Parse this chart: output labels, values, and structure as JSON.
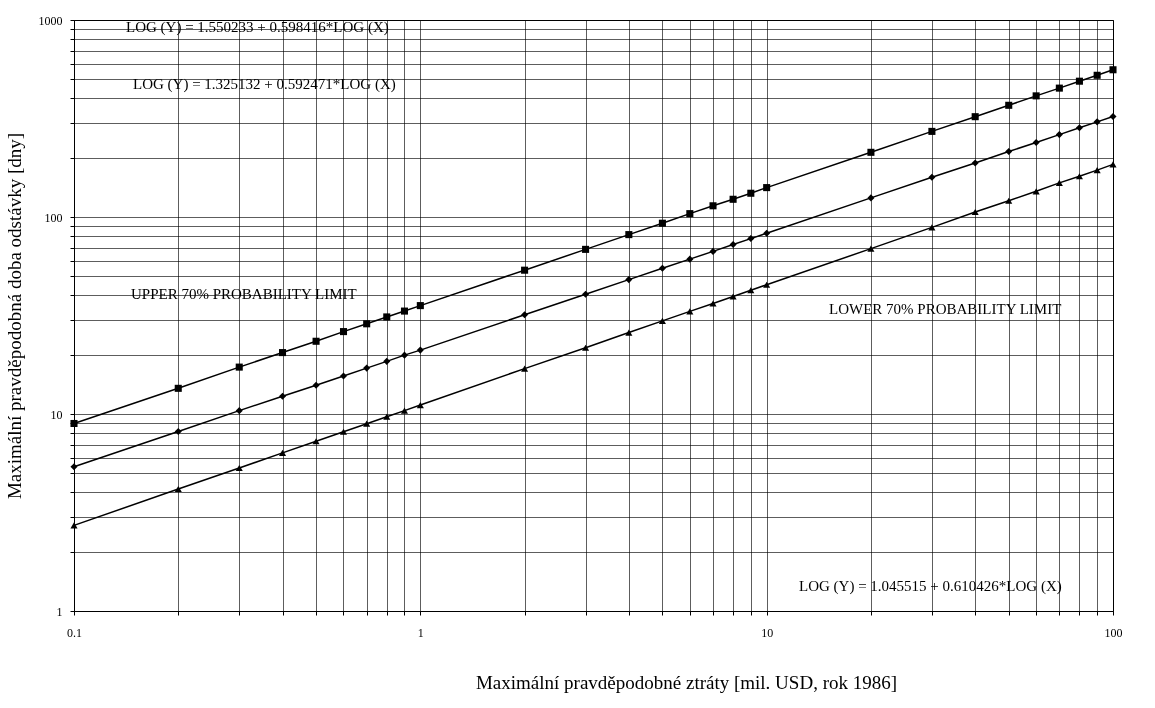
{
  "chart_data": {
    "type": "line",
    "xlabel": "Maximální pravděpodobné ztráty [mil. USD, rok 1986]",
    "ylabel": "Maximální pravděpodobná doba odstávky [dny]",
    "log": "xy",
    "grid": true,
    "line_style": "solid",
    "x": [
      0.1,
      0.2,
      0.3,
      0.4,
      0.5,
      0.6,
      0.7,
      0.8,
      0.9,
      1,
      2,
      3,
      4,
      5,
      6,
      7,
      8,
      9,
      10,
      20,
      30,
      40,
      50,
      60,
      70,
      80,
      90,
      100
    ],
    "series": [
      {
        "color": "#000000",
        "marker": "square",
        "values": [
          8.95,
          13.5,
          17.3,
          20.5,
          23.4,
          26.2,
          28.7,
          31.1,
          33.3,
          35.5,
          53.7,
          68.5,
          81.4,
          93,
          104,
          114,
          123,
          132,
          141,
          213,
          272,
          323,
          369,
          412,
          451,
          489,
          524,
          559
        ]
      },
      {
        "color": "#000000",
        "marker": "diamond",
        "values": [
          5.4,
          8.15,
          10.4,
          12.3,
          14,
          15.6,
          17.1,
          18.5,
          19.9,
          21.1,
          31.9,
          40.5,
          48.1,
          54.9,
          61.1,
          66.9,
          72.5,
          77.7,
          82.7,
          125,
          159,
          188,
          215,
          239,
          262,
          284,
          304,
          324
        ]
      },
      {
        "color": "#000000",
        "marker": "triangle",
        "values": [
          2.72,
          4.16,
          5.32,
          6.35,
          7.27,
          8.13,
          8.93,
          9.69,
          10.4,
          11.1,
          17,
          21.7,
          25.9,
          29.7,
          33.2,
          36.4,
          39.5,
          42.5,
          45.3,
          69.1,
          88.6,
          106,
          121,
          135,
          149,
          161,
          173,
          185
        ]
      }
    ],
    "xlim": [
      0.1,
      100
    ],
    "ylim": [
      1,
      1000
    ],
    "xticks": [
      0.1,
      {
        "value": 0.2,
        "label": null
      },
      {
        "value": 0.3,
        "label": null
      },
      {
        "value": 0.4,
        "label": null
      },
      {
        "value": 0.5,
        "label": null
      },
      {
        "value": 0.6,
        "label": null
      },
      {
        "value": 0.7,
        "label": null
      },
      {
        "value": 0.8,
        "label": null
      },
      {
        "value": 0.9,
        "label": null
      },
      1,
      {
        "value": 2,
        "label": null
      },
      {
        "value": 3,
        "label": null
      },
      {
        "value": 4,
        "label": null
      },
      {
        "value": 5,
        "label": null
      },
      {
        "value": 6,
        "label": null
      },
      {
        "value": 7,
        "label": null
      },
      {
        "value": 8,
        "label": null
      },
      {
        "value": 9,
        "label": null
      },
      10,
      {
        "value": 20,
        "label": null
      },
      {
        "value": 30,
        "label": null
      },
      {
        "value": 40,
        "label": null
      },
      {
        "value": 50,
        "label": null
      },
      {
        "value": 60,
        "label": null
      },
      {
        "value": 70,
        "label": null
      },
      {
        "value": 80,
        "label": null
      },
      {
        "value": 90,
        "label": null
      },
      100
    ],
    "yticks": [
      1,
      {
        "value": 2,
        "label": null
      },
      {
        "value": 3,
        "label": null
      },
      {
        "value": 4,
        "label": null
      },
      {
        "value": 5,
        "label": null
      },
      {
        "value": 6,
        "label": null
      },
      {
        "value": 7,
        "label": null
      },
      {
        "value": 8,
        "label": null
      },
      {
        "value": 9,
        "label": null
      },
      10,
      {
        "value": 20,
        "label": null
      },
      {
        "value": 30,
        "label": null
      },
      {
        "value": 40,
        "label": null
      },
      {
        "value": 50,
        "label": null
      },
      {
        "value": 60,
        "label": null
      },
      {
        "value": 70,
        "label": null
      },
      {
        "value": 80,
        "label": null
      },
      {
        "value": 90,
        "label": null
      },
      100,
      {
        "value": 200,
        "label": null
      },
      {
        "value": 300,
        "label": null
      },
      {
        "value": 400,
        "label": null
      },
      {
        "value": 500,
        "label": null
      },
      {
        "value": 600,
        "label": null
      },
      {
        "value": 700,
        "label": null
      },
      {
        "value": 800,
        "label": null
      },
      {
        "value": 900,
        "label": null
      },
      1000
    ],
    "annotations": [
      "LOG (Y) = 1.550233 + 0.598416*LOG (X)",
      "LOG (Y) = 1.325132 + 0.592471*LOG (X)",
      "UPPER 70% PROBABILITY LIMIT",
      "LOWER 70% PROBABILITY LIMIT",
      "LOG (Y) = 1.045515 + 0.610426*LOG (X)"
    ]
  }
}
